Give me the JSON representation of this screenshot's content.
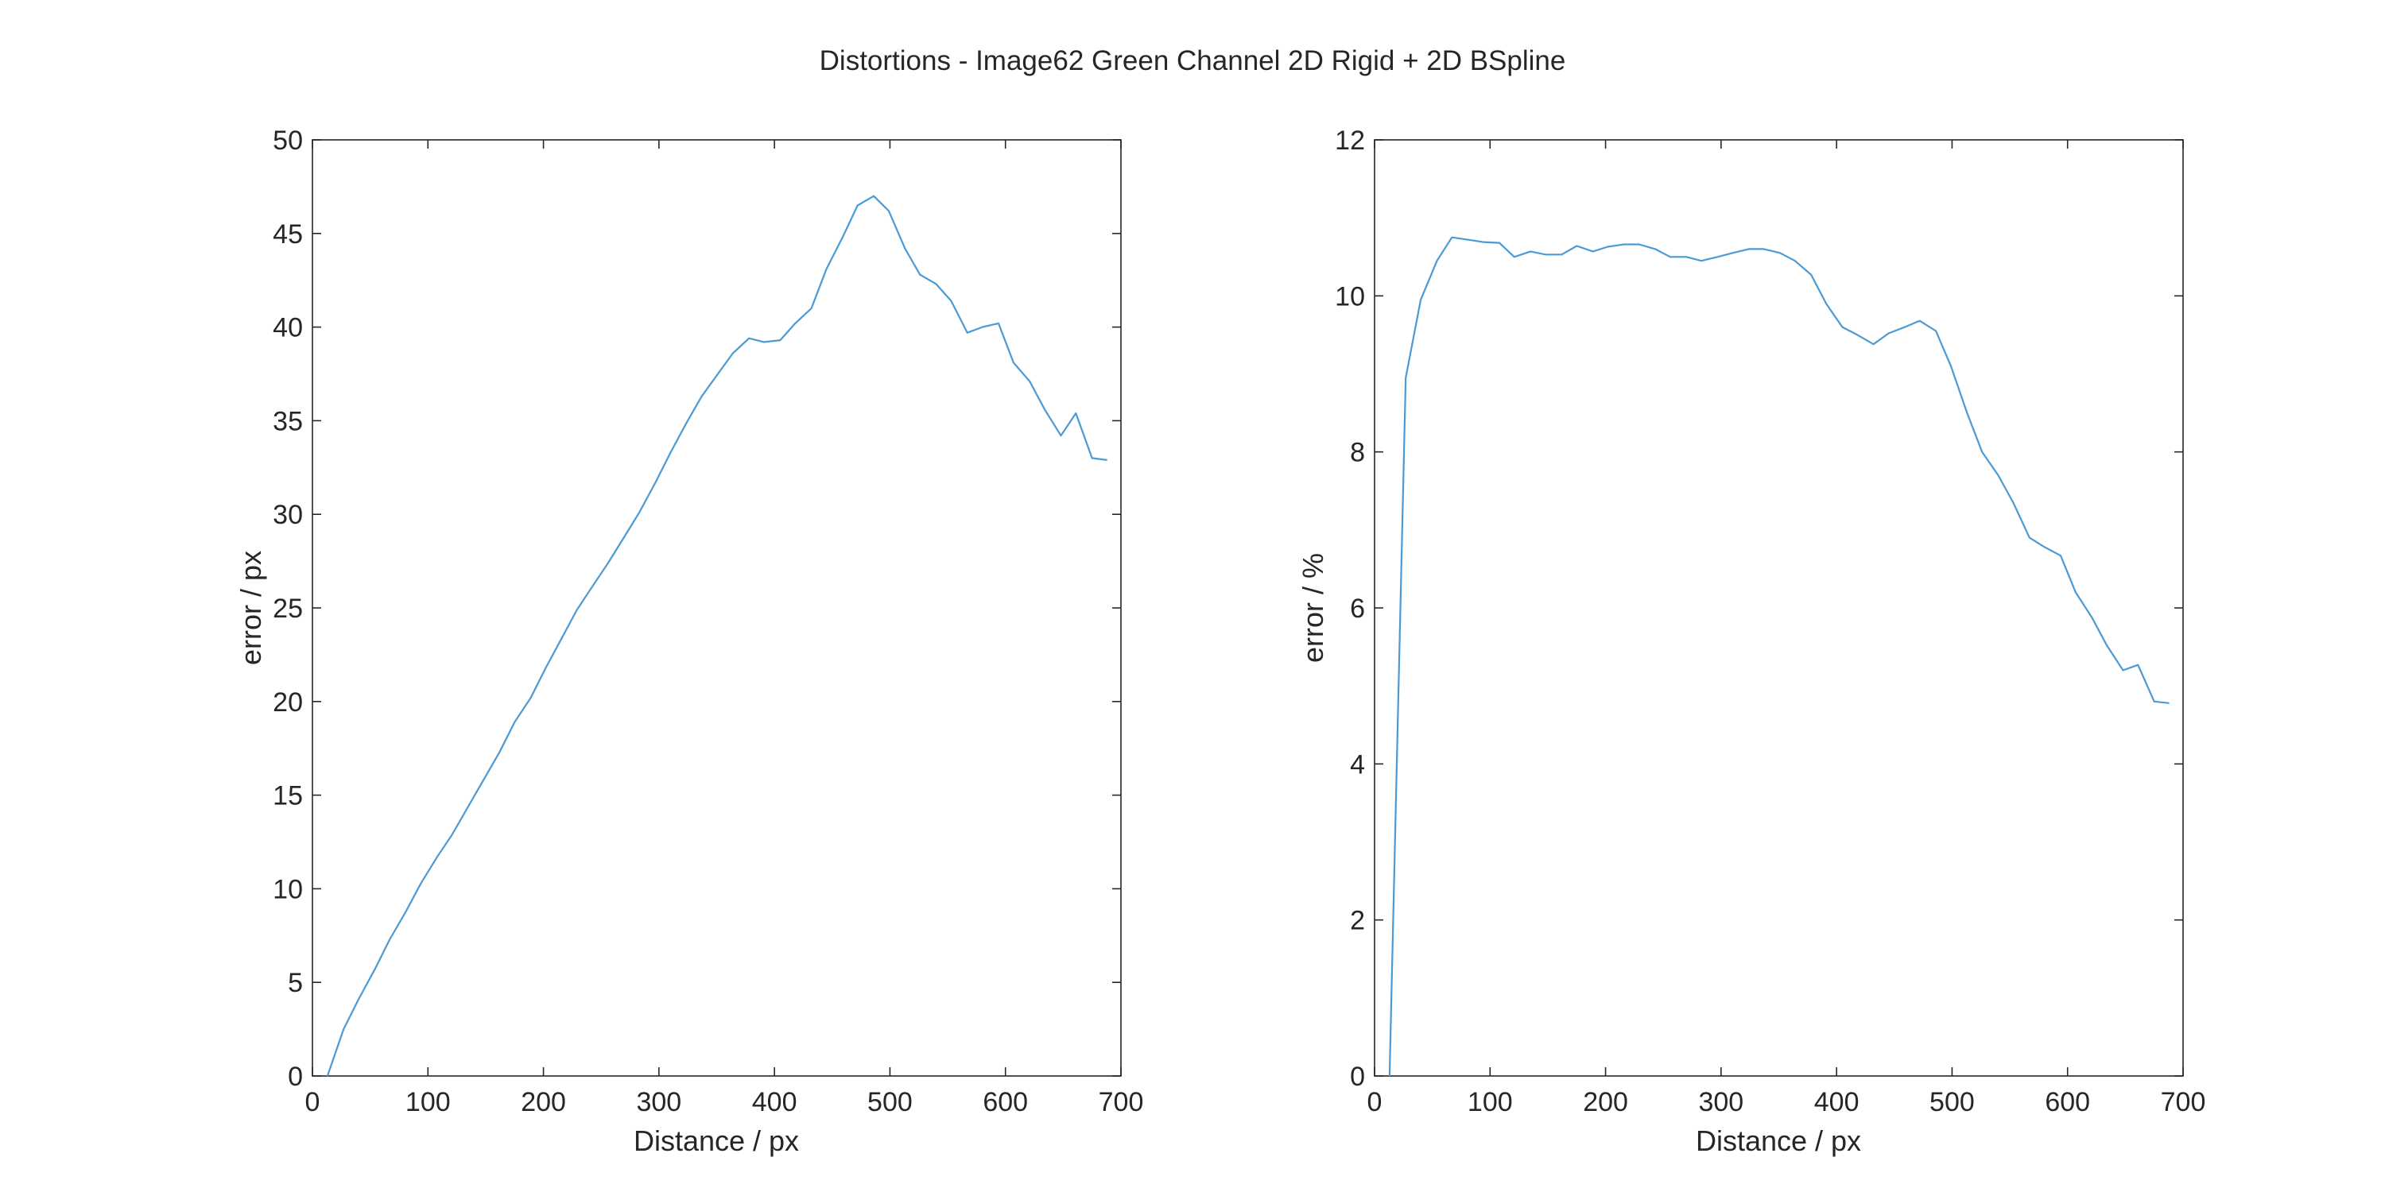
{
  "figure_title": "Distortions - Image62 Green Channel 2D Rigid + 2D BSpline",
  "colors": {
    "series": "#4a9ad6",
    "axes": "#262626",
    "background": "#ffffff"
  },
  "chart_data": [
    {
      "type": "line",
      "xlabel": "Distance / px",
      "ylabel": "error / px",
      "xlim": [
        0,
        700
      ],
      "ylim": [
        0,
        50
      ],
      "xticks": [
        "0",
        "100",
        "200",
        "300",
        "400",
        "500",
        "600",
        "700"
      ],
      "yticks": [
        "0",
        "5",
        "10",
        "15",
        "20",
        "25",
        "30",
        "35",
        "40",
        "45",
        "50"
      ],
      "grid": false,
      "series": [
        {
          "color": "#4a9ad6",
          "x": [
            13,
            27,
            40,
            54,
            67,
            81,
            94,
            108,
            121,
            135,
            148,
            162,
            175,
            189,
            202,
            216,
            229,
            243,
            256,
            270,
            283,
            297,
            310,
            324,
            337,
            351,
            364,
            378,
            391,
            405,
            418,
            432,
            445,
            459,
            472,
            486,
            499,
            513,
            526,
            540,
            553,
            567,
            580,
            594,
            607,
            621,
            634,
            648,
            661,
            675,
            688
          ],
          "y": [
            0,
            2.5,
            4.1,
            5.7,
            7.3,
            8.8,
            10.3,
            11.7,
            12.9,
            14.4,
            15.8,
            17.3,
            18.9,
            20.2,
            21.8,
            23.4,
            24.9,
            26.2,
            27.4,
            28.8,
            30.1,
            31.7,
            33.3,
            34.9,
            36.3,
            37.5,
            38.6,
            39.4,
            39.2,
            39.3,
            40.2,
            41.0,
            43.1,
            44.8,
            46.5,
            47.0,
            46.2,
            44.2,
            42.8,
            42.3,
            41.4,
            39.7,
            40.0,
            40.2,
            38.1,
            37.1,
            35.6,
            34.2,
            35.4,
            33.0,
            32.9
          ]
        }
      ]
    },
    {
      "type": "line",
      "xlabel": "Distance / px",
      "ylabel": "error / %",
      "xlim": [
        0,
        700
      ],
      "ylim": [
        0,
        12
      ],
      "xticks": [
        "0",
        "100",
        "200",
        "300",
        "400",
        "500",
        "600",
        "700"
      ],
      "yticks": [
        "0",
        "2",
        "4",
        "6",
        "8",
        "10",
        "12"
      ],
      "grid": false,
      "series": [
        {
          "color": "#4a9ad6",
          "x": [
            13,
            27,
            40,
            54,
            67,
            81,
            94,
            108,
            121,
            135,
            148,
            162,
            175,
            189,
            202,
            216,
            229,
            243,
            256,
            270,
            283,
            297,
            310,
            324,
            337,
            351,
            364,
            378,
            391,
            405,
            418,
            432,
            445,
            459,
            472,
            486,
            499,
            513,
            526,
            540,
            553,
            567,
            580,
            594,
            607,
            621,
            634,
            648,
            661,
            675,
            688
          ],
          "y": [
            0,
            8.95,
            9.95,
            10.45,
            10.75,
            10.72,
            10.69,
            10.68,
            10.5,
            10.57,
            10.53,
            10.53,
            10.64,
            10.57,
            10.63,
            10.66,
            10.66,
            10.6,
            10.5,
            10.5,
            10.45,
            10.5,
            10.55,
            10.6,
            10.6,
            10.55,
            10.45,
            10.27,
            9.9,
            9.6,
            9.5,
            9.38,
            9.52,
            9.6,
            9.68,
            9.55,
            9.1,
            8.5,
            8.0,
            7.7,
            7.35,
            6.9,
            6.78,
            6.67,
            6.2,
            5.88,
            5.52,
            5.2,
            5.27,
            4.8,
            4.78
          ]
        }
      ]
    }
  ]
}
